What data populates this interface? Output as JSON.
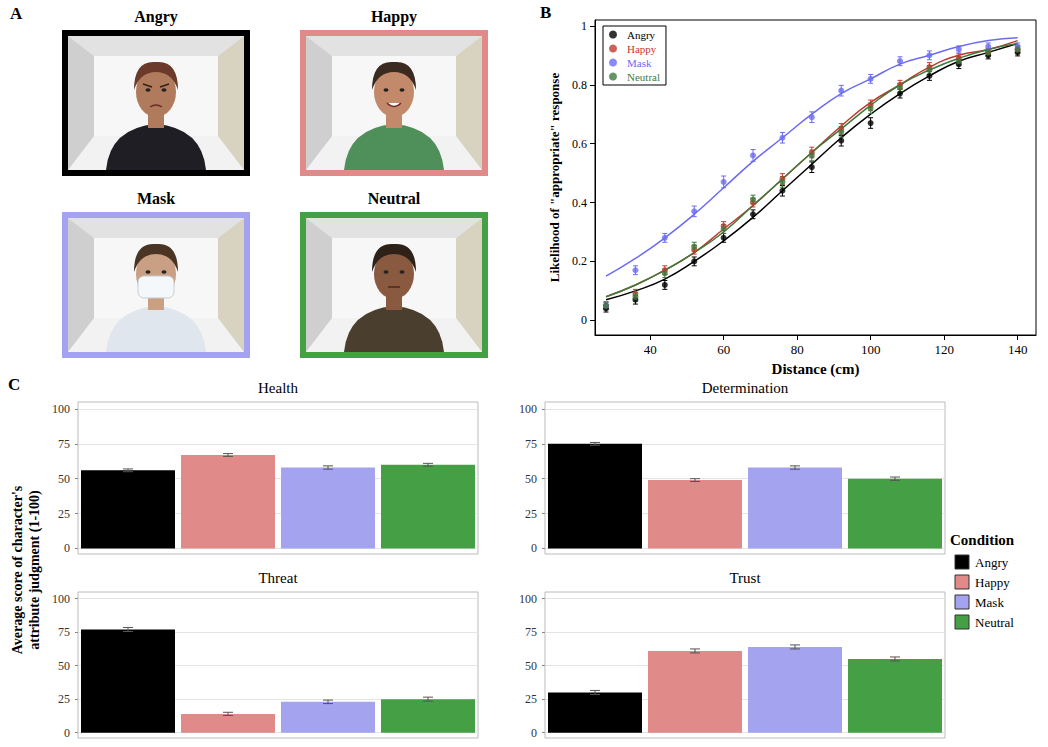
{
  "panel_a": {
    "letter": "A",
    "images": [
      {
        "title": "Angry",
        "color": "#000000"
      },
      {
        "title": "Happy",
        "color": "#e08a8a"
      },
      {
        "title": "Mask",
        "color": "#a3a3f0"
      },
      {
        "title": "Neutral",
        "color": "#45a045"
      }
    ]
  },
  "chart_data": [
    {
      "type": "line",
      "annotations": [
        "B"
      ],
      "xlabel": "Distance (cm)",
      "ylabel": "Likelihood of \"appropriate\" response",
      "x": [
        28,
        36,
        44,
        52,
        60,
        68,
        76,
        84,
        92,
        100,
        108,
        116,
        124,
        132,
        140
      ],
      "xlim": [
        25,
        145
      ],
      "xticks": [
        40,
        60,
        80,
        100,
        120,
        140
      ],
      "ylim": [
        -0.05,
        1.02
      ],
      "yticks": [
        0,
        0.2,
        0.4,
        0.6,
        0.8,
        1
      ],
      "legend": "upper left",
      "marker": "circle",
      "series": [
        {
          "name": "Angry",
          "color": "#000000",
          "values": [
            0.04,
            0.07,
            0.12,
            0.2,
            0.28,
            0.36,
            0.44,
            0.52,
            0.61,
            0.67,
            0.77,
            0.83,
            0.87,
            0.9,
            0.91
          ],
          "errors": [
            0.012,
            0.015,
            0.015,
            0.015,
            0.015,
            0.015,
            0.018,
            0.018,
            0.018,
            0.018,
            0.015,
            0.015,
            0.015,
            0.012,
            0.012
          ],
          "fit": [
            0.07,
            0.1,
            0.14,
            0.2,
            0.27,
            0.35,
            0.44,
            0.53,
            0.62,
            0.7,
            0.77,
            0.83,
            0.88,
            0.91,
            0.94
          ]
        },
        {
          "name": "Happy",
          "color": "#c0392b",
          "values": [
            0.05,
            0.09,
            0.17,
            0.24,
            0.32,
            0.4,
            0.48,
            0.57,
            0.65,
            0.73,
            0.8,
            0.86,
            0.89,
            0.91,
            0.92
          ],
          "errors": [
            0.012,
            0.015,
            0.015,
            0.015,
            0.015,
            0.015,
            0.018,
            0.018,
            0.018,
            0.018,
            0.015,
            0.015,
            0.015,
            0.012,
            0.012
          ],
          "fit": [
            0.08,
            0.12,
            0.17,
            0.23,
            0.31,
            0.39,
            0.48,
            0.57,
            0.66,
            0.74,
            0.8,
            0.86,
            0.9,
            0.92,
            0.95
          ]
        },
        {
          "name": "Mask",
          "color": "#6b6bf5",
          "values": [
            0.05,
            0.17,
            0.28,
            0.37,
            0.47,
            0.56,
            0.62,
            0.69,
            0.78,
            0.82,
            0.88,
            0.9,
            0.92,
            0.93,
            0.93
          ],
          "errors": [
            0.012,
            0.015,
            0.015,
            0.018,
            0.02,
            0.02,
            0.018,
            0.018,
            0.018,
            0.015,
            0.015,
            0.015,
            0.012,
            0.012,
            0.012
          ],
          "fit": [
            0.15,
            0.21,
            0.28,
            0.36,
            0.45,
            0.54,
            0.62,
            0.7,
            0.77,
            0.82,
            0.87,
            0.9,
            0.93,
            0.95,
            0.96
          ]
        },
        {
          "name": "Neutral",
          "color": "#3d7a3d",
          "values": [
            0.05,
            0.08,
            0.16,
            0.25,
            0.31,
            0.41,
            0.47,
            0.56,
            0.64,
            0.72,
            0.79,
            0.85,
            0.88,
            0.91,
            0.92
          ],
          "errors": [
            0.012,
            0.015,
            0.015,
            0.015,
            0.015,
            0.015,
            0.018,
            0.018,
            0.018,
            0.018,
            0.015,
            0.015,
            0.015,
            0.012,
            0.012
          ],
          "fit": [
            0.08,
            0.12,
            0.17,
            0.23,
            0.3,
            0.39,
            0.48,
            0.57,
            0.65,
            0.73,
            0.8,
            0.85,
            0.89,
            0.92,
            0.94
          ]
        }
      ]
    },
    {
      "type": "bar",
      "annotations": [
        "C"
      ],
      "ylabel": "Average score of character's attribute judgment (1-100)",
      "legend_title": "Condition",
      "legend": "right",
      "categories": [
        "Angry",
        "Happy",
        "Mask",
        "Neutral"
      ],
      "colors": [
        "#000000",
        "#e08a8a",
        "#a3a3f0",
        "#45a045"
      ],
      "tick_labels": "y",
      "grid": true,
      "ylim": [
        -4,
        105
      ],
      "yticks": [
        0,
        25,
        50,
        75,
        100
      ],
      "panels": [
        {
          "title": "Health",
          "values": [
            56,
            67,
            58,
            60
          ],
          "errors": [
            1.0,
            1.0,
            1.2,
            1.0
          ]
        },
        {
          "title": "Determination",
          "values": [
            75,
            49,
            58,
            50
          ],
          "errors": [
            1.0,
            1.0,
            1.2,
            1.2
          ]
        },
        {
          "title": "Threat",
          "values": [
            77,
            14,
            23,
            25
          ],
          "errors": [
            1.5,
            1.2,
            1.3,
            1.5
          ]
        },
        {
          "title": "Trust",
          "values": [
            30,
            61,
            64,
            55
          ],
          "errors": [
            1.5,
            1.5,
            1.5,
            1.5
          ]
        }
      ]
    }
  ]
}
